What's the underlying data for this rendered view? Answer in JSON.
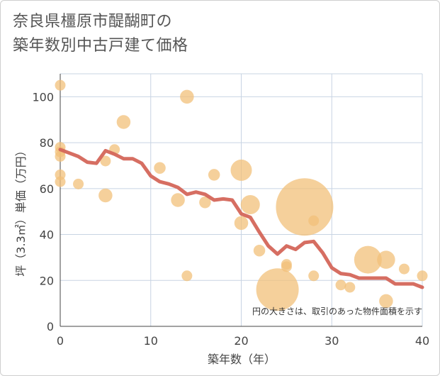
{
  "title_line1": "奈良県橿原市醍醐町の",
  "title_line2": "築年数別中古戸建て価格",
  "chart_data": {
    "type": "scatter",
    "title": "奈良県橿原市醍醐町の築年数別中古戸建て価格",
    "xlabel": "築年数（年）",
    "ylabel": "坪（3.3㎡）単価（万円）",
    "xlim": [
      0,
      40
    ],
    "ylim": [
      0,
      110
    ],
    "xticks": [
      0,
      10,
      20,
      30,
      40
    ],
    "yticks": [
      0,
      20,
      40,
      60,
      80,
      100
    ],
    "grid": true,
    "note": "円の大きさは、取引のあった物件面積を示す",
    "colors": {
      "bubble": "#f2c079",
      "line": "#d4665a",
      "grid": "#c8d4e3"
    },
    "bubbles": [
      {
        "x": 0,
        "y": 105,
        "s": 1
      },
      {
        "x": 0,
        "y": 78,
        "s": 1
      },
      {
        "x": 0,
        "y": 76,
        "s": 1
      },
      {
        "x": 0,
        "y": 74,
        "s": 1
      },
      {
        "x": 0,
        "y": 66,
        "s": 1
      },
      {
        "x": 0,
        "y": 63,
        "s": 1
      },
      {
        "x": 2,
        "y": 62,
        "s": 1
      },
      {
        "x": 5,
        "y": 72,
        "s": 1
      },
      {
        "x": 5,
        "y": 57,
        "s": 1.3
      },
      {
        "x": 6,
        "y": 77,
        "s": 1
      },
      {
        "x": 7,
        "y": 89,
        "s": 1.3
      },
      {
        "x": 11,
        "y": 69,
        "s": 1.1
      },
      {
        "x": 13,
        "y": 55,
        "s": 1.3
      },
      {
        "x": 14,
        "y": 100,
        "s": 1.3
      },
      {
        "x": 14,
        "y": 22,
        "s": 1
      },
      {
        "x": 16,
        "y": 54,
        "s": 1.1
      },
      {
        "x": 17,
        "y": 66,
        "s": 1.1
      },
      {
        "x": 20,
        "y": 68,
        "s": 2
      },
      {
        "x": 20,
        "y": 45,
        "s": 1.3
      },
      {
        "x": 21,
        "y": 53,
        "s": 1.8
      },
      {
        "x": 22,
        "y": 33,
        "s": 1.1
      },
      {
        "x": 24,
        "y": 16,
        "s": 4
      },
      {
        "x": 25,
        "y": 27,
        "s": 1
      },
      {
        "x": 25,
        "y": 26,
        "s": 1
      },
      {
        "x": 27,
        "y": 52,
        "s": 5.4
      },
      {
        "x": 28,
        "y": 46,
        "s": 1
      },
      {
        "x": 28,
        "y": 22,
        "s": 1
      },
      {
        "x": 31,
        "y": 18,
        "s": 1
      },
      {
        "x": 32,
        "y": 17,
        "s": 1
      },
      {
        "x": 34,
        "y": 29,
        "s": 2.6
      },
      {
        "x": 36,
        "y": 29,
        "s": 1.7
      },
      {
        "x": 36,
        "y": 11,
        "s": 1.3
      },
      {
        "x": 38,
        "y": 25,
        "s": 1
      },
      {
        "x": 40,
        "y": 22,
        "s": 1
      }
    ],
    "trend": {
      "x": [
        0,
        1,
        2,
        3,
        4,
        5,
        6,
        7,
        8,
        9,
        10,
        11,
        12,
        13,
        14,
        15,
        16,
        17,
        18,
        19,
        20,
        21,
        22,
        23,
        24,
        25,
        26,
        27,
        28,
        29,
        30,
        31,
        32,
        33,
        34,
        35,
        36,
        37,
        38,
        39,
        40
      ],
      "y": [
        77,
        75.5,
        74,
        71.5,
        71,
        76.5,
        75,
        73,
        73,
        71,
        65.5,
        63,
        62,
        60.5,
        57.5,
        58.5,
        57.5,
        55,
        55.5,
        55,
        49,
        47.5,
        41,
        35,
        31.5,
        35,
        33.5,
        36.5,
        37,
        32,
        25.5,
        23,
        22.5,
        21,
        21,
        21,
        21,
        18.5,
        18.5,
        18.5,
        17
      ]
    }
  }
}
